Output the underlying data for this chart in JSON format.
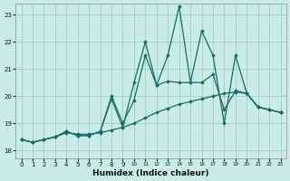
{
  "xlabel": "Humidex (Indice chaleur)",
  "background_color": "#c8ece8",
  "grid_color": "#a0ccc8",
  "line_color": "#1a6b64",
  "xlim": [
    -0.5,
    23.5
  ],
  "ylim": [
    17.7,
    23.4
  ],
  "yticks": [
    18,
    19,
    20,
    21,
    22,
    23
  ],
  "xticks": [
    0,
    1,
    2,
    3,
    4,
    5,
    6,
    7,
    8,
    9,
    10,
    11,
    12,
    13,
    14,
    15,
    16,
    17,
    18,
    19,
    20,
    21,
    22,
    23
  ],
  "series": [
    {
      "x": [
        0,
        1,
        2,
        3,
        4,
        5,
        6,
        7,
        8,
        9,
        10,
        11,
        12,
        13,
        14,
        15,
        16,
        17,
        18,
        19,
        20,
        21,
        22,
        23
      ],
      "y": [
        18.4,
        18.3,
        18.4,
        18.5,
        18.65,
        18.6,
        18.6,
        18.65,
        18.75,
        18.85,
        19.0,
        19.2,
        19.4,
        19.55,
        19.7,
        19.8,
        19.9,
        20.0,
        20.1,
        20.15,
        20.1,
        19.6,
        19.5,
        19.4
      ],
      "marker": "D",
      "markersize": 1.8,
      "linewidth": 0.9
    },
    {
      "x": [
        0,
        1,
        2,
        3,
        4,
        5,
        6,
        7,
        8,
        9,
        10,
        11,
        12,
        13,
        14,
        15,
        16,
        17,
        18,
        19,
        20,
        21,
        22,
        23
      ],
      "y": [
        18.4,
        18.3,
        18.4,
        18.5,
        18.7,
        18.55,
        18.55,
        18.7,
        20.0,
        19.0,
        19.85,
        21.5,
        20.4,
        20.55,
        20.5,
        20.5,
        20.5,
        20.8,
        19.5,
        20.2,
        20.1,
        19.6,
        19.5,
        19.4
      ],
      "marker": "D",
      "markersize": 1.8,
      "linewidth": 0.9
    },
    {
      "x": [
        0,
        1,
        2,
        3,
        4,
        5,
        6,
        7,
        8,
        9,
        10,
        11,
        12,
        13,
        14,
        15,
        16,
        17,
        18,
        19,
        20,
        21,
        22,
        23
      ],
      "y": [
        18.4,
        18.3,
        18.4,
        18.5,
        18.7,
        18.55,
        18.55,
        18.7,
        19.9,
        18.85,
        20.5,
        22.0,
        20.4,
        21.5,
        23.3,
        20.5,
        22.4,
        21.5,
        19.0,
        21.5,
        20.1,
        19.6,
        19.5,
        19.4
      ],
      "marker": "D",
      "markersize": 1.8,
      "linewidth": 0.9
    }
  ]
}
